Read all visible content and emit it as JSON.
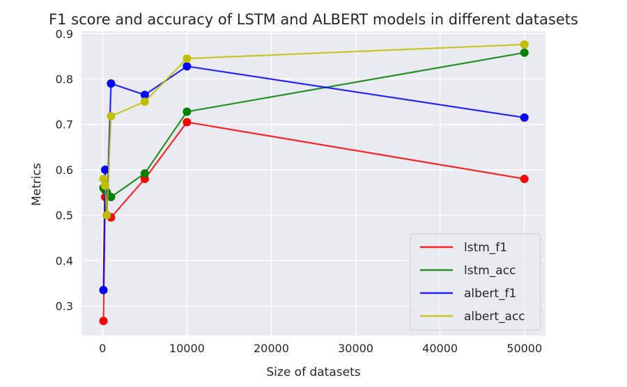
{
  "chart_data": {
    "type": "line",
    "title": "F1 score and accuracy of LSTM and ALBERT models in different datasets",
    "xlabel": "Size of datasets",
    "ylabel": "Metrics",
    "xlim": [
      -2500,
      52500
    ],
    "ylim": [
      0.235,
      0.905
    ],
    "x_ticks": [
      0,
      10000,
      20000,
      30000,
      40000,
      50000
    ],
    "y_ticks": [
      0.3,
      0.4,
      0.5,
      0.6,
      0.7,
      0.8,
      0.9
    ],
    "grid": true,
    "legend_position": "lower-right",
    "x": [
      100,
      300,
      500,
      1000,
      5000,
      10000,
      50000
    ],
    "series": [
      {
        "name": "lstm_f1",
        "color": "#ff0000",
        "values": [
          0.267,
          0.54,
          0.5,
          0.495,
          0.58,
          0.705,
          0.58
        ]
      },
      {
        "name": "lstm_acc",
        "color": "#008000",
        "values": [
          0.56,
          0.555,
          0.55,
          0.54,
          0.592,
          0.728,
          0.858
        ]
      },
      {
        "name": "albert_f1",
        "color": "#0000ff",
        "values": [
          0.335,
          0.6,
          0.5,
          0.79,
          0.765,
          0.828,
          0.715
        ]
      },
      {
        "name": "albert_acc",
        "color": "#bfbf00",
        "values": [
          0.58,
          0.565,
          0.5,
          0.718,
          0.75,
          0.845,
          0.876
        ]
      }
    ]
  }
}
